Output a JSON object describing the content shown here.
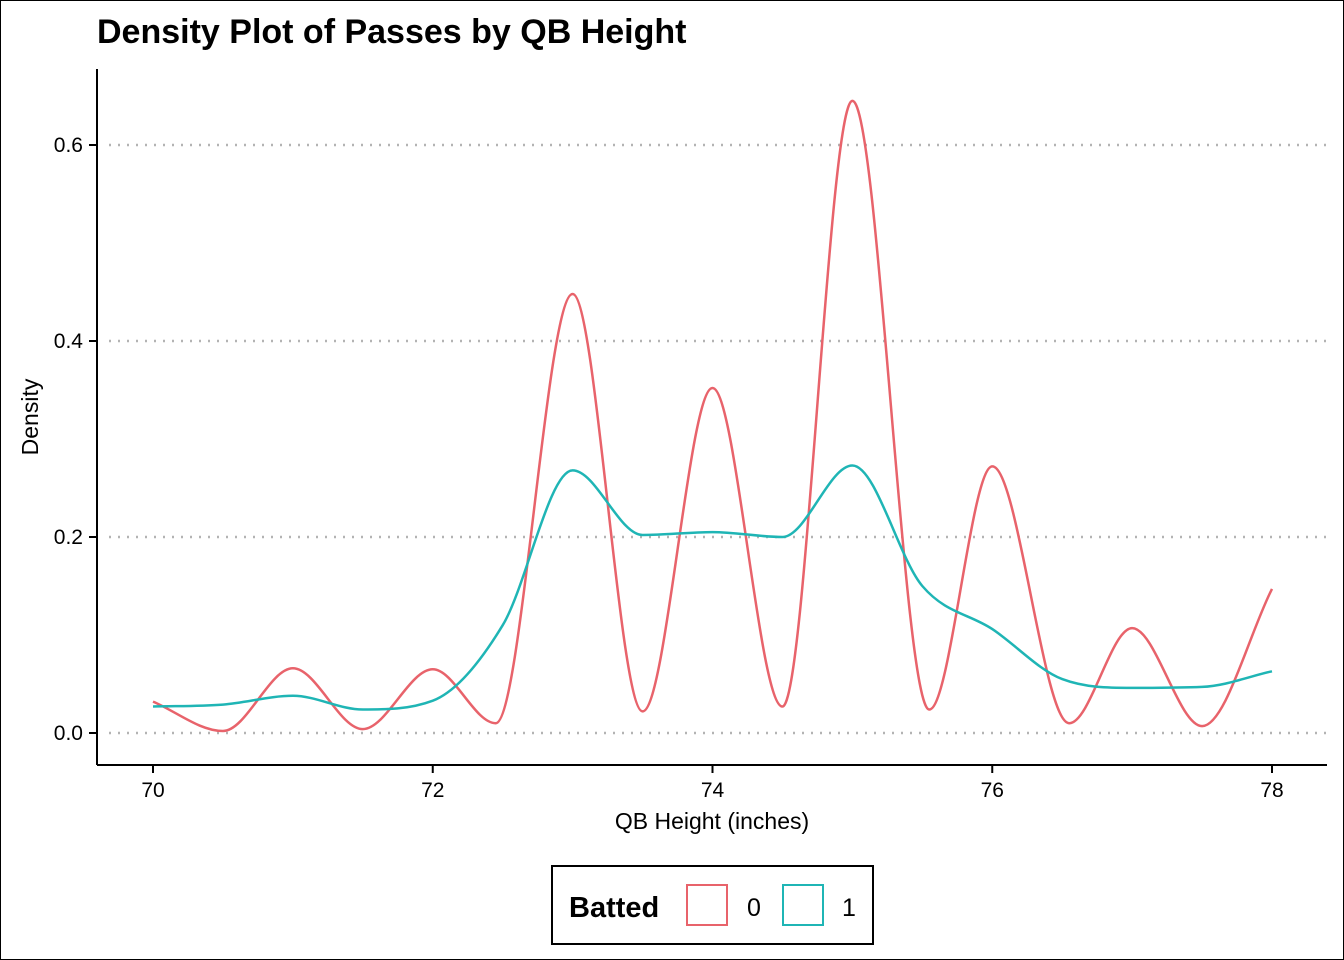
{
  "chart_data": {
    "type": "line",
    "title": "Density Plot of Passes by QB Height",
    "xlabel": "QB Height (inches)",
    "ylabel": "Density",
    "xlim": [
      69.6,
      78.1
    ],
    "ylim": [
      -0.03,
      0.675
    ],
    "x_ticks": [
      70,
      72,
      74,
      76,
      78
    ],
    "y_ticks": [
      0.0,
      0.2,
      0.4,
      0.6
    ],
    "x_tick_labels": [
      "70",
      "72",
      "74",
      "76",
      "78"
    ],
    "y_tick_labels": [
      "0.0",
      "0.2",
      "0.4",
      "0.6"
    ],
    "grid": "horizontal dotted",
    "legend": {
      "title": "Batted",
      "position": "bottom",
      "entries": [
        "0",
        "1"
      ]
    },
    "series": [
      {
        "name": "0",
        "color": "#E8636B",
        "x": [
          70.0,
          70.5,
          71.0,
          71.5,
          72.0,
          72.45,
          73.0,
          73.5,
          74.0,
          74.5,
          75.0,
          75.55,
          76.0,
          76.55,
          77.0,
          77.5,
          78.0
        ],
        "y": [
          0.032,
          0.002,
          0.066,
          0.004,
          0.065,
          0.01,
          0.448,
          0.022,
          0.352,
          0.027,
          0.645,
          0.024,
          0.272,
          0.01,
          0.107,
          0.007,
          0.147
        ]
      },
      {
        "name": "1",
        "color": "#1FB5B5",
        "x": [
          70.0,
          70.5,
          71.0,
          71.5,
          72.0,
          72.5,
          73.0,
          73.5,
          74.0,
          74.5,
          75.0,
          75.5,
          76.0,
          76.5,
          77.0,
          77.5,
          78.0
        ],
        "y": [
          0.027,
          0.029,
          0.038,
          0.024,
          0.033,
          0.11,
          0.268,
          0.202,
          0.205,
          0.2,
          0.273,
          0.15,
          0.106,
          0.055,
          0.046,
          0.047,
          0.063
        ]
      }
    ]
  }
}
